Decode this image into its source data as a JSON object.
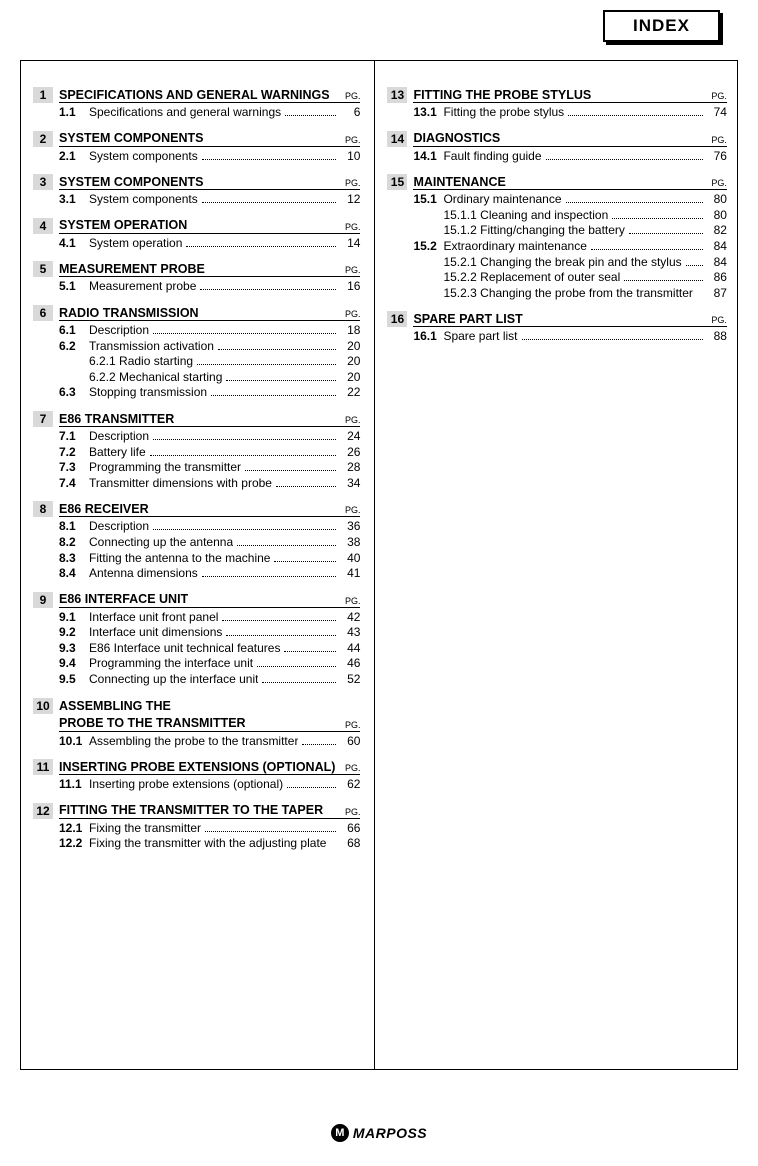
{
  "tab_label": "INDEX",
  "pg_label": "PG.",
  "footer_brand": "MARPOSS",
  "footer_icon_letter": "M",
  "left_col": [
    {
      "num": "1",
      "title": "SPECIFICATIONS AND GENERAL WARNINGS",
      "items": [
        {
          "n": "1.1",
          "t": "Specifications and general warnings",
          "p": "6"
        }
      ]
    },
    {
      "num": "2",
      "title": "SYSTEM COMPONENTS",
      "items": [
        {
          "n": "2.1",
          "t": "System components",
          "p": "10"
        }
      ]
    },
    {
      "num": "3",
      "title": "SYSTEM COMPONENTS",
      "items": [
        {
          "n": "3.1",
          "t": "System components",
          "p": "12"
        }
      ]
    },
    {
      "num": "4",
      "title": "SYSTEM OPERATION",
      "items": [
        {
          "n": "4.1",
          "t": "System operation",
          "p": "14"
        }
      ]
    },
    {
      "num": "5",
      "title": "MEASUREMENT PROBE",
      "items": [
        {
          "n": "5.1",
          "t": "Measurement probe",
          "p": "16"
        }
      ]
    },
    {
      "num": "6",
      "title": "RADIO TRANSMISSION",
      "items": [
        {
          "n": "6.1",
          "t": "Description",
          "p": "18"
        },
        {
          "n": "6.2",
          "t": "Transmission activation",
          "p": "20"
        },
        {
          "sub": true,
          "t": "6.2.1  Radio starting",
          "p": "20"
        },
        {
          "sub": true,
          "t": "6.2.2  Mechanical starting",
          "p": "20"
        },
        {
          "n": "6.3",
          "t": "Stopping transmission",
          "p": "22"
        }
      ]
    },
    {
      "num": "7",
      "title": "E86 TRANSMITTER",
      "items": [
        {
          "n": "7.1",
          "t": "Description",
          "p": "24"
        },
        {
          "n": "7.2",
          "t": "Battery life",
          "p": "26"
        },
        {
          "n": "7.3",
          "t": "Programming the transmitter",
          "p": "28"
        },
        {
          "n": "7.4",
          "t": "Transmitter dimensions with probe",
          "p": "34"
        }
      ]
    },
    {
      "num": "8",
      "title": "E86 RECEIVER",
      "items": [
        {
          "n": "8.1",
          "t": "Description",
          "p": "36"
        },
        {
          "n": "8.2",
          "t": "Connecting up the antenna",
          "p": "38"
        },
        {
          "n": "8.3",
          "t": "Fitting the antenna to the machine",
          "p": "40"
        },
        {
          "n": "8.4",
          "t": "Antenna dimensions",
          "p": "41"
        }
      ]
    },
    {
      "num": "9",
      "title": "E86 INTERFACE UNIT",
      "items": [
        {
          "n": "9.1",
          "t": "Interface unit front panel",
          "p": "42"
        },
        {
          "n": "9.2",
          "t": "Interface unit  dimensions",
          "p": "43"
        },
        {
          "n": "9.3",
          "t": "E86 Interface unit technical features",
          "p": "44"
        },
        {
          "n": "9.4",
          "t": "Programming the interface unit",
          "p": "46"
        },
        {
          "n": "9.5",
          "t": "Connecting up the interface unit",
          "p": "52"
        }
      ]
    },
    {
      "num": "10",
      "title_prefix": "ASSEMBLING THE",
      "title": "PROBE TO THE TRANSMITTER",
      "items": [
        {
          "n": "10.1",
          "t": "Assembling the probe to the transmitter",
          "p": "60"
        }
      ]
    },
    {
      "num": "11",
      "title": "INSERTING PROBE EXTENSIONS (OPTIONAL)",
      "items": [
        {
          "n": "11.1",
          "t": "Inserting probe extensions (optional)",
          "p": "62"
        }
      ]
    },
    {
      "num": "12",
      "title": "FITTING THE TRANSMITTER TO THE TAPER",
      "items": [
        {
          "n": "12.1",
          "t": "Fixing the transmitter",
          "p": "66"
        },
        {
          "n": "12.2",
          "t": "Fixing the transmitter  with the adjusting plate",
          "p": "68",
          "nodots": true
        }
      ]
    }
  ],
  "right_col": [
    {
      "num": "13",
      "title": "FITTING THE PROBE STYLUS",
      "items": [
        {
          "n": "13.1",
          "t": "Fitting the probe stylus",
          "p": "74"
        }
      ]
    },
    {
      "num": "14",
      "title": "DIAGNOSTICS",
      "items": [
        {
          "n": "14.1",
          "t": "Fault finding guide",
          "p": "76"
        }
      ]
    },
    {
      "num": "15",
      "title": "MAINTENANCE",
      "items": [
        {
          "n": "15.1",
          "t": "Ordinary maintenance",
          "p": "80"
        },
        {
          "sub": true,
          "t": "15.1.1 Cleaning and inspection",
          "p": "80"
        },
        {
          "sub": true,
          "t": "15.1.2 Fitting/changing the battery",
          "p": "82"
        },
        {
          "n": "15.2",
          "t": "Extraordinary maintenance",
          "p": "84"
        },
        {
          "sub": true,
          "t": "15.2.1 Changing the break pin and the stylus",
          "p": "84"
        },
        {
          "sub": true,
          "t": "15.2.2 Replacement of outer seal",
          "p": "86"
        },
        {
          "sub": true,
          "t": "15.2.3 Changing the probe from the transmitter",
          "p": "87",
          "nodots": true
        }
      ]
    },
    {
      "num": "16",
      "title": "SPARE PART LIST",
      "items": [
        {
          "n": "16.1",
          "t": "Spare part list",
          "p": "88"
        }
      ]
    }
  ]
}
